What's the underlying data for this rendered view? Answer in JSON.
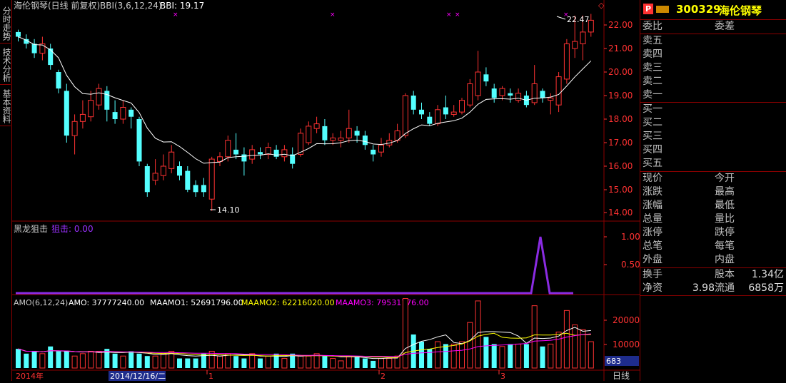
{
  "side_tabs": [
    "分时走势",
    "技术分析",
    "基本资料"
  ],
  "main_chart": {
    "title": "海伦钢琴(日线 前复权)",
    "indicator_label": "BBI(3,6,12,24)",
    "bbi_label": "BBI: 19.17",
    "y_ticks": [
      "22.00",
      "21.00",
      "20.00",
      "19.00",
      "18.00",
      "17.00",
      "16.00",
      "15.00",
      "14.00"
    ],
    "high_mark": "22.47",
    "low_mark": "14.10"
  },
  "sub1": {
    "title": "黑龙狙击",
    "value_label": "狙击: 0.00",
    "y_ticks": [
      "1.00",
      "0.50"
    ]
  },
  "sub2": {
    "title": "AMO(6,12,24)",
    "amo": "AMO: 37777240.00",
    "maamo1": "MAAMO1: 52691796.00",
    "maamo2": "MAAMO2: 62216020.00",
    "maamo3": "MAAMO3: 79531776.00",
    "y_ticks": [
      "20000",
      "10000"
    ],
    "unit_box": "683"
  },
  "x_axis": {
    "labels": [
      "2014年",
      "1",
      "2",
      "3"
    ],
    "cursor_date": "2014/12/16/二",
    "period": "日线"
  },
  "quote_panel": {
    "code": "300329",
    "name": "海伦钢琴",
    "badge": "P",
    "weibi": "委比",
    "weicha": "委差",
    "sells": [
      "卖五",
      "卖四",
      "卖三",
      "卖二",
      "卖一"
    ],
    "buys": [
      "买一",
      "买二",
      "买三",
      "买四",
      "买五"
    ],
    "left_labels": [
      "现价",
      "涨跌",
      "涨幅",
      "总量",
      "涨停",
      "总笔",
      "外盘"
    ],
    "right_labels": [
      "今开",
      "最高",
      "最低",
      "量比",
      "跌停",
      "每笔",
      "内盘"
    ],
    "turnover_label": "换手",
    "equity_label": "股本",
    "equity_value": "1.34亿",
    "netasset_label": "净资",
    "netasset_value": "3.98",
    "float_label": "流通",
    "float_value": "6858万"
  },
  "colors": {
    "up": "#ff3232",
    "down": "#54ffff",
    "bbi": "#ffffff",
    "sniper": "#8a2be2",
    "maamo1": "#ffffff",
    "maamo2": "#ffff00",
    "maamo3": "#ff00ff",
    "border": "#8b0000"
  },
  "candles": [
    {
      "o": 21.7,
      "c": 21.5,
      "h": 21.8,
      "l": 21.3
    },
    {
      "o": 21.4,
      "c": 21.2,
      "h": 21.6,
      "l": 21.0
    },
    {
      "o": 21.2,
      "c": 20.8,
      "h": 21.4,
      "l": 20.6
    },
    {
      "o": 20.8,
      "c": 21.2,
      "h": 21.5,
      "l": 20.5
    },
    {
      "o": 21.0,
      "c": 20.3,
      "h": 21.2,
      "l": 20.1
    },
    {
      "o": 20.0,
      "c": 19.3,
      "h": 20.1,
      "l": 19.1
    },
    {
      "o": 19.2,
      "c": 17.3,
      "h": 19.5,
      "l": 17.0
    },
    {
      "o": 17.3,
      "c": 17.9,
      "h": 18.2,
      "l": 16.5
    },
    {
      "o": 17.9,
      "c": 18.2,
      "h": 18.8,
      "l": 17.6
    },
    {
      "o": 18.1,
      "c": 18.8,
      "h": 19.2,
      "l": 17.9
    },
    {
      "o": 18.6,
      "c": 19.3,
      "h": 19.5,
      "l": 18.4
    },
    {
      "o": 19.2,
      "c": 18.4,
      "h": 19.4,
      "l": 17.9
    },
    {
      "o": 18.3,
      "c": 18.0,
      "h": 18.8,
      "l": 17.8
    },
    {
      "o": 18.0,
      "c": 18.5,
      "h": 18.8,
      "l": 17.8
    },
    {
      "o": 18.4,
      "c": 18.1,
      "h": 18.5,
      "l": 17.6
    },
    {
      "o": 18.0,
      "c": 16.2,
      "h": 18.1,
      "l": 16.0
    },
    {
      "o": 16.0,
      "c": 14.9,
      "h": 16.1,
      "l": 14.7
    },
    {
      "o": 15.4,
      "c": 15.7,
      "h": 16.3,
      "l": 15.2
    },
    {
      "o": 15.6,
      "c": 16.0,
      "h": 16.5,
      "l": 15.4
    },
    {
      "o": 15.9,
      "c": 16.6,
      "h": 16.9,
      "l": 15.7
    },
    {
      "o": 16.0,
      "c": 15.6,
      "h": 16.2,
      "l": 15.4
    },
    {
      "o": 15.8,
      "c": 15.0,
      "h": 16.0,
      "l": 14.9
    },
    {
      "o": 15.2,
      "c": 14.9,
      "h": 15.4,
      "l": 14.7
    },
    {
      "o": 15.2,
      "c": 14.9,
      "h": 15.5,
      "l": 14.7
    },
    {
      "o": 14.6,
      "c": 16.3,
      "h": 16.4,
      "l": 14.1
    },
    {
      "o": 16.2,
      "c": 16.4,
      "h": 16.6,
      "l": 16.0
    },
    {
      "o": 16.4,
      "c": 17.1,
      "h": 17.3,
      "l": 16.2
    },
    {
      "o": 16.7,
      "c": 16.5,
      "h": 17.4,
      "l": 16.3
    },
    {
      "o": 16.5,
      "c": 16.2,
      "h": 16.8,
      "l": 15.6
    },
    {
      "o": 16.3,
      "c": 16.7,
      "h": 16.9,
      "l": 16.1
    },
    {
      "o": 16.6,
      "c": 16.5,
      "h": 16.8,
      "l": 16.3
    },
    {
      "o": 16.5,
      "c": 16.8,
      "h": 17.0,
      "l": 16.3
    },
    {
      "o": 16.7,
      "c": 16.4,
      "h": 16.9,
      "l": 16.3
    },
    {
      "o": 16.4,
      "c": 16.7,
      "h": 16.9,
      "l": 16.2
    },
    {
      "o": 16.5,
      "c": 16.1,
      "h": 16.8,
      "l": 15.9
    },
    {
      "o": 16.5,
      "c": 17.4,
      "h": 17.6,
      "l": 16.4
    },
    {
      "o": 17.0,
      "c": 17.7,
      "h": 17.9,
      "l": 16.9
    },
    {
      "o": 17.6,
      "c": 17.8,
      "h": 18.1,
      "l": 17.4
    },
    {
      "o": 17.7,
      "c": 17.1,
      "h": 18.0,
      "l": 16.9
    },
    {
      "o": 17.1,
      "c": 17.2,
      "h": 17.4,
      "l": 16.9
    },
    {
      "o": 17.1,
      "c": 17.2,
      "h": 17.5,
      "l": 16.8
    },
    {
      "o": 17.2,
      "c": 17.6,
      "h": 18.4,
      "l": 17.0
    },
    {
      "o": 17.5,
      "c": 17.3,
      "h": 17.7,
      "l": 17.0
    },
    {
      "o": 17.3,
      "c": 16.9,
      "h": 17.5,
      "l": 16.7
    },
    {
      "o": 16.7,
      "c": 16.5,
      "h": 16.9,
      "l": 16.2
    },
    {
      "o": 16.6,
      "c": 16.9,
      "h": 17.2,
      "l": 16.4
    },
    {
      "o": 16.9,
      "c": 17.1,
      "h": 17.4,
      "l": 16.8
    },
    {
      "o": 17.1,
      "c": 17.5,
      "h": 17.8,
      "l": 17.0
    },
    {
      "o": 17.3,
      "c": 19.0,
      "h": 19.1,
      "l": 17.2
    },
    {
      "o": 19.0,
      "c": 18.4,
      "h": 19.2,
      "l": 18.2
    },
    {
      "o": 18.4,
      "c": 18.2,
      "h": 18.7,
      "l": 18.0
    },
    {
      "o": 18.1,
      "c": 17.8,
      "h": 18.3,
      "l": 17.7
    },
    {
      "o": 17.8,
      "c": 18.4,
      "h": 18.6,
      "l": 17.7
    },
    {
      "o": 18.5,
      "c": 18.2,
      "h": 19.0,
      "l": 18.0
    },
    {
      "o": 18.2,
      "c": 18.3,
      "h": 18.6,
      "l": 18.1
    },
    {
      "o": 18.3,
      "c": 18.8,
      "h": 18.9,
      "l": 18.2
    },
    {
      "o": 18.6,
      "c": 19.5,
      "h": 19.7,
      "l": 18.5
    },
    {
      "o": 19.0,
      "c": 20.0,
      "h": 20.9,
      "l": 18.8
    },
    {
      "o": 19.9,
      "c": 19.6,
      "h": 20.2,
      "l": 19.4
    },
    {
      "o": 19.3,
      "c": 18.9,
      "h": 19.5,
      "l": 18.7
    },
    {
      "o": 19.0,
      "c": 19.3,
      "h": 19.4,
      "l": 18.8
    },
    {
      "o": 19.1,
      "c": 19.0,
      "h": 19.3,
      "l": 18.7
    },
    {
      "o": 18.8,
      "c": 19.1,
      "h": 19.3,
      "l": 18.7
    },
    {
      "o": 19.0,
      "c": 18.6,
      "h": 19.2,
      "l": 18.5
    },
    {
      "o": 18.7,
      "c": 19.5,
      "h": 20.3,
      "l": 18.6
    },
    {
      "o": 19.2,
      "c": 18.9,
      "h": 19.3,
      "l": 18.7
    },
    {
      "o": 18.8,
      "c": 18.9,
      "h": 19.1,
      "l": 18.2
    },
    {
      "o": 18.6,
      "c": 19.8,
      "h": 20.0,
      "l": 18.3
    },
    {
      "o": 19.7,
      "c": 21.2,
      "h": 21.4,
      "l": 19.5
    },
    {
      "o": 21.0,
      "c": 21.3,
      "h": 22.4,
      "l": 20.6
    },
    {
      "o": 21.2,
      "c": 21.7,
      "h": 22.4,
      "l": 20.5
    },
    {
      "o": 21.7,
      "c": 22.2,
      "h": 22.47,
      "l": 21.5
    }
  ],
  "volumes": [
    8,
    6,
    7,
    6,
    9,
    7,
    7,
    5,
    6,
    7,
    7,
    8,
    6,
    5,
    7,
    6,
    5,
    5,
    6,
    7,
    4,
    4,
    4,
    6,
    7,
    5,
    6,
    5,
    4,
    6,
    4,
    5,
    6,
    4,
    6,
    5,
    5,
    6,
    5,
    4,
    3,
    5,
    5,
    4,
    3,
    4,
    4,
    5,
    29,
    14,
    11,
    8,
    11,
    10,
    10,
    11,
    19,
    28,
    13,
    10,
    9,
    10,
    10,
    10,
    26,
    9,
    10,
    15,
    24,
    18,
    16,
    11
  ]
}
